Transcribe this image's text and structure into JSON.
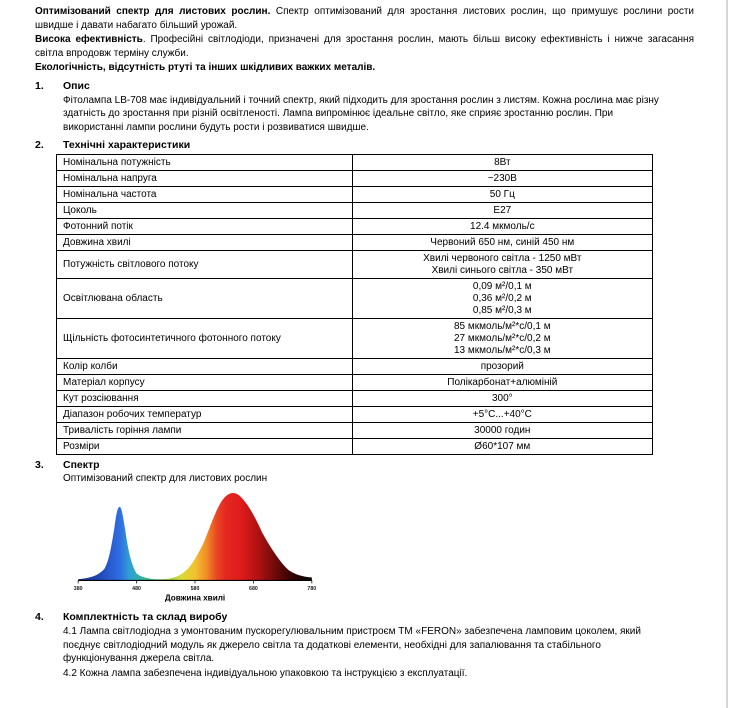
{
  "intro": [
    {
      "lead": "Оптимізований спектр для листових рослин.",
      "rest": " Спектр оптимізований для зростання листових рослин, що примушує рослини рости швидше і давати набагато більший урожай."
    },
    {
      "lead": "Висока ефективність",
      "rest": ". Професійні світлодіоди, призначені для зростання рослин, мають більш високу ефективність і нижче загасання світла впродовж терміну служби."
    },
    {
      "lead": "Екологічність, відсутність ртуті та інших шкідливих важких металів.",
      "rest": ""
    }
  ],
  "sections": {
    "s1": {
      "num": "1.",
      "title": "Опис",
      "body": "Фітолампа LB-708 має індивідуальний і точний спектр, який підходить для зростання рослин з листям. Кожна рослина має різну здатність до зростання при різній освітленості. Лампа випромінює ідеальне світло, яке сприяє зростанню рослин. При використанні лампи рослини будуть рости і розвиватися швидше."
    },
    "s2": {
      "num": "2.",
      "title": "Технічні характеристики"
    },
    "s3": {
      "num": "3.",
      "title": "Спектр",
      "subtitle": "Оптимізований спектр для листових рослин"
    },
    "s4": {
      "num": "4.",
      "title": "Комплектність та склад виробу",
      "p1": "4.1 Лампа світлодіодна з умонтованим пускорегулювальним пристроєм ТМ «FERON» забезпечена ламповим цоколем, який поєднує світлодіодний модуль як джерело світла та додаткові елементи, необхідні для запалювання та стабільного функціонування джерела світла.",
      "p2": "4.2 Кожна лампа забезпечена індивідуальною упаковкою та інструкцією з експлуатації."
    }
  },
  "table": {
    "rows": [
      {
        "label": "Номінальна потужність",
        "values": [
          "8Вт"
        ]
      },
      {
        "label": "Номінальна напруга",
        "values": [
          "~230В"
        ]
      },
      {
        "label": "Номінальна частота",
        "values": [
          "50 Гц"
        ]
      },
      {
        "label": "Цоколь",
        "values": [
          "Е27"
        ]
      },
      {
        "label": "Фотонний потік",
        "values": [
          "12.4 мкмоль/с"
        ]
      },
      {
        "label": "Довжина хвилі",
        "values": [
          "Червоний 650 нм, синій 450 нм"
        ]
      },
      {
        "label": "Потужність світлового потоку",
        "values": [
          "Хвилі червоного світла - 1250 мВт",
          "Хвилі синього світла - 350 мВт"
        ]
      },
      {
        "label": "Освітлювана область",
        "values": [
          "0,09 м²/0,1 м",
          "0,36 м²/0,2 м",
          "0,85 м²/0,3 м"
        ]
      },
      {
        "label": "Щільність фотосинтетичного фотонного потоку",
        "values": [
          "85 мкмоль/м²*с/0,1 м",
          "27 мкмоль/м²*с/0,2 м",
          "13 мкмоль/м²*с/0,3 м"
        ]
      },
      {
        "label": "Колір колби",
        "values": [
          "прозорий"
        ]
      },
      {
        "label": "Матеріал корпусу",
        "values": [
          "Полікарбонат+алюміній"
        ]
      },
      {
        "label": "Кут розсіювання",
        "values": [
          "300°"
        ]
      },
      {
        "label": "Діапазон робочих температур",
        "values": [
          "+5°C...+40°C"
        ]
      },
      {
        "label": "Тривалість горіння лампи",
        "values": [
          "30000 годин"
        ]
      },
      {
        "label": "Розміри",
        "values": [
          "Ø60*107 мм"
        ]
      }
    ]
  },
  "chart_data": {
    "type": "area",
    "title": "Оптимізований спектр для листових рослин",
    "xlabel": "Довжина хвилі",
    "x_range": [
      380,
      780
    ],
    "x_ticks": [
      380,
      480,
      580,
      680,
      780
    ],
    "grid": false,
    "legend": false,
    "series": [
      {
        "name": "синій пік",
        "peak_nm": 450,
        "relative_intensity": 0.84,
        "width": "narrow",
        "color": "#2f6fe0"
      },
      {
        "name": "червоний пік",
        "peak_nm": 650,
        "relative_intensity": 1.0,
        "width": "broad",
        "color": "#de1b1b"
      }
    ]
  },
  "colors": {
    "page_edge": "#d6d6d6",
    "table_border": "#000000"
  }
}
